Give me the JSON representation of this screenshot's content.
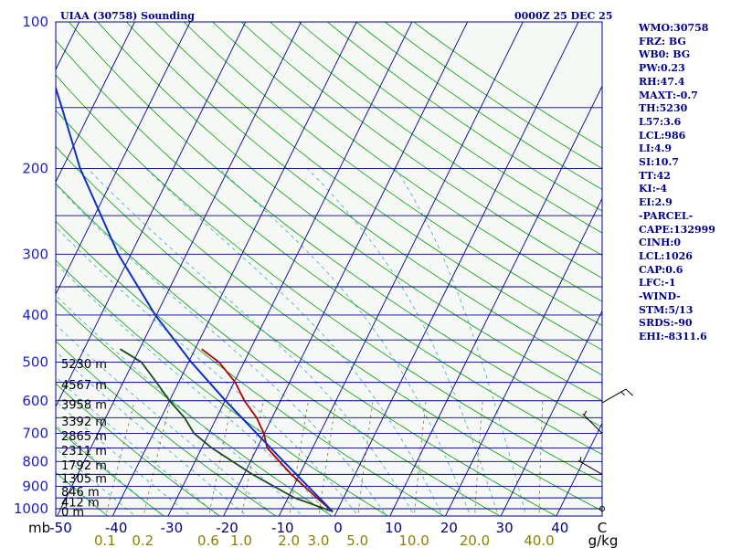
{
  "header": {
    "station_title": "UIAA (30758) Sounding",
    "valid_time": "0000Z 25 DEC 25"
  },
  "indices": [
    "WMO:30758",
    "FRZ: BG",
    "WB0: BG",
    "PW:0.23",
    "RH:47.4",
    "MAXT:-0.7",
    "TH:5230",
    "L57:3.6",
    "LCL:986",
    "LI:4.9",
    "SI:10.7",
    "TT:42",
    "KI:-4",
    "EI:2.9",
    "-PARCEL-",
    "CAPE:132999",
    "CINH:0",
    "LCL:1026",
    "CAP:0.6",
    "LFC:-1",
    "-WIND-",
    "STM:5/13",
    "SRDS:-90",
    "EHI:-8311.6"
  ],
  "colors": {
    "isobar": "#00008b",
    "dry_adiabat": "#00a000",
    "moist_adiabat": "#40a8c0",
    "mixing_ratio": "#7a7a3a",
    "temperature": "#b00000",
    "dewpoint": "#1a4a1a",
    "parcel": "#1030c0",
    "background": "#f6f8f6"
  },
  "chart_data": {
    "type": "line",
    "title": "UIAA (30758) Sounding",
    "diagram": "skew-T log-P",
    "y_scale": "log",
    "y_axis": {
      "unit": "mb",
      "range": [
        1000,
        100
      ],
      "tick_labels": [
        "100",
        "200",
        "300",
        "400",
        "500",
        "600",
        "700",
        "800",
        "900",
        "1000"
      ]
    },
    "x_axis": {
      "unit_label": "C",
      "range": [
        -50,
        50
      ],
      "tick_labels": [
        "-50",
        "-40",
        "-30",
        "-20",
        "-10",
        "0",
        "10",
        "20",
        "30",
        "40"
      ]
    },
    "mixing_ratio_axis": {
      "unit": "g/kg",
      "tick_labels": [
        "0.1",
        "0.2",
        "0.6",
        "1.0",
        "2.0",
        "3.0",
        "5.0",
        "10.0",
        "20.0",
        "40.0"
      ]
    },
    "height_labels": [
      {
        "p": 503,
        "label": "5230 m"
      },
      {
        "p": 556,
        "label": "4567 m"
      },
      {
        "p": 610,
        "label": "3958 m"
      },
      {
        "p": 660,
        "label": "3392 m"
      },
      {
        "p": 708,
        "label": "2865 m"
      },
      {
        "p": 758,
        "label": "2311 m"
      },
      {
        "p": 812,
        "label": "1792 m"
      },
      {
        "p": 866,
        "label": "1305 m"
      },
      {
        "p": 922,
        "label": "846 m"
      },
      {
        "p": 968,
        "label": "412 m"
      },
      {
        "p": 1012,
        "label": "0 m"
      }
    ],
    "series": [
      {
        "key": "temperature",
        "pressure": [
          1014,
          950,
          850,
          750,
          700,
          650,
          600,
          550,
          500,
          470
        ],
        "temperature": [
          -0.7,
          -4.8,
          -11.5,
          -18.2,
          -20.1,
          -22.8,
          -26.5,
          -29.8,
          -34.5,
          -38.8
        ]
      },
      {
        "key": "dewpoint",
        "pressure": [
          1014,
          950,
          850,
          750,
          700,
          650,
          600,
          550,
          500,
          470
        ],
        "temperature": [
          -0.7,
          -8.8,
          -18.5,
          -28.2,
          -32.7,
          -35.8,
          -40.0,
          -44.0,
          -48.5,
          -53.5
        ]
      },
      {
        "key": "parcel",
        "pressure": [
          1014,
          900,
          800,
          700,
          600,
          500,
          400,
          300,
          200,
          150,
          130
        ],
        "temperature": [
          -0.7,
          -7.4,
          -14.0,
          -21.4,
          -29.9,
          -39.5,
          -50.2,
          -62.3,
          -76.8,
          -85.5,
          -89.9
        ]
      }
    ],
    "wind_barbs": [
      {
        "p": 606,
        "direction": 60,
        "speed_kt": 15
      },
      {
        "p": 700,
        "direction": 315,
        "speed_kt": 5
      },
      {
        "p": 850,
        "direction": 300,
        "speed_kt": 5
      },
      {
        "p": 1000,
        "direction": 0,
        "speed_kt": 0
      }
    ],
    "grid": true
  }
}
